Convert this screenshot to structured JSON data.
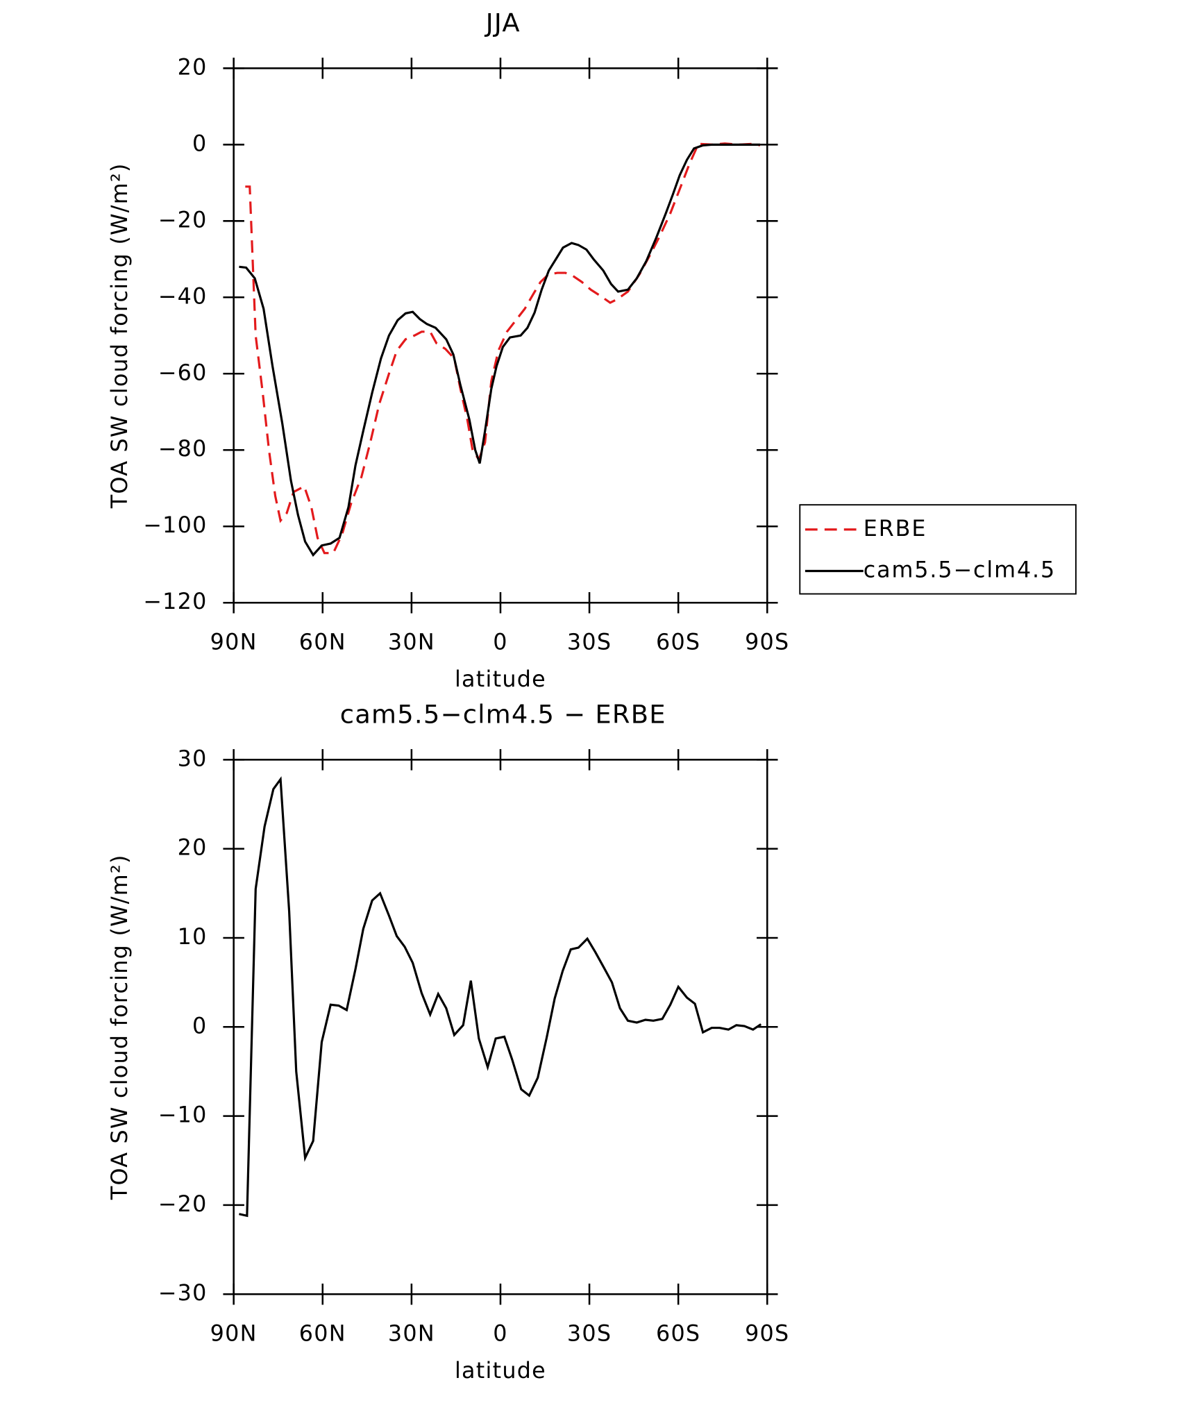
{
  "chart_data": [
    {
      "type": "line",
      "title": "JJA",
      "xlabel": "latitude",
      "ylabel": "TOA SW cloud forcing (W/m²)",
      "xlim": [
        90,
        -90
      ],
      "xticks": [
        {
          "value": 90,
          "label": "90N"
        },
        {
          "value": 60,
          "label": "60N"
        },
        {
          "value": 30,
          "label": "30N"
        },
        0,
        {
          "value": -30,
          "label": "30S"
        },
        {
          "value": -60,
          "label": "60S"
        },
        {
          "value": -90,
          "label": "90S"
        }
      ],
      "ylim": [
        -120,
        20
      ],
      "yticks": [
        {
          "value": -120,
          "label": "−120"
        },
        {
          "value": -100,
          "label": "−100"
        },
        {
          "value": -80,
          "label": "−80"
        },
        {
          "value": -60,
          "label": "−60"
        },
        {
          "value": -40,
          "label": "−40"
        },
        {
          "value": -20,
          "label": "−20"
        },
        0,
        20
      ],
      "legend": "right",
      "series": [
        {
          "name": "ERBE",
          "color": "#e31a1c",
          "dash": true,
          "x": [
            86.1,
            84.6,
            82.6,
            80.2,
            78.1,
            76.0,
            74.2,
            72.1,
            69.8,
            66.2,
            63.8,
            61.7,
            59.4,
            56.4,
            53.4,
            50.4,
            46.9,
            43.9,
            40.9,
            37.6,
            35.0,
            32.0,
            29.0,
            26.6,
            23.7,
            21.6,
            18.6,
            15.6,
            13.5,
            11.2,
            9.4,
            7.3,
            5.2,
            3.1,
            0.7,
            -2.2,
            -5.2,
            -8.2,
            -11.2,
            -13.5,
            -16.2,
            -19.2,
            -21.9,
            -24.5,
            -27.5,
            -30.5,
            -33.5,
            -37.0,
            -39.4,
            -43.0,
            -46.9,
            -50.4,
            -53.7,
            -57.3,
            -60.8,
            -63.8,
            -66.8,
            -71.6,
            -75.7,
            -80.5,
            -85.5,
            -87.6
          ],
          "values": [
            -11,
            -11,
            -50,
            -65,
            -80,
            -92,
            -98.5,
            -96.5,
            -91,
            -89.5,
            -95,
            -103,
            -107,
            -107,
            -102,
            -94,
            -87,
            -78,
            -68,
            -60,
            -54,
            -51,
            -50,
            -49,
            -49,
            -52,
            -53.5,
            -56,
            -64,
            -72,
            -80,
            -82.5,
            -78,
            -62,
            -54,
            -49,
            -46,
            -43,
            -39,
            -36,
            -34,
            -33.6,
            -33.6,
            -34.4,
            -36,
            -38,
            -39.5,
            -41.4,
            -40.5,
            -38.5,
            -34,
            -29,
            -24,
            -18,
            -11,
            -5,
            0.2,
            0,
            0.3,
            0,
            0.2,
            -0.2
          ]
        },
        {
          "name": "cam5.5−clm4.5",
          "color": "#000000",
          "dash": false,
          "x": [
            88.2,
            85.8,
            82.9,
            79.9,
            76.9,
            73.6,
            70.7,
            68.3,
            65.9,
            63.2,
            60.3,
            57.3,
            54.3,
            51.3,
            48.9,
            46.3,
            43.3,
            40.3,
            37.6,
            34.7,
            32.0,
            29.6,
            27.2,
            24.8,
            21.9,
            18.3,
            15.9,
            13.5,
            10.5,
            8.5,
            7.0,
            5.2,
            3.1,
            1.3,
            -0.8,
            -3.2,
            -6.8,
            -9.1,
            -11.5,
            -13.9,
            -16.3,
            -18.7,
            -21.1,
            -24.0,
            -26.3,
            -29.0,
            -31.4,
            -34.7,
            -37.3,
            -39.7,
            -43.0,
            -46.0,
            -49.2,
            -52.5,
            -55.8,
            -58.2,
            -60.5,
            -62.9,
            -65.3,
            -68.3,
            -71.6,
            -74.5,
            -78.1,
            -82.6,
            -85.8,
            -87.6
          ],
          "values": [
            -32,
            -32.2,
            -35,
            -43,
            -58,
            -73,
            -88,
            -97,
            -104,
            -107.5,
            -105,
            -104.5,
            -103,
            -95,
            -84,
            -75,
            -65,
            -56,
            -50,
            -46,
            -44.2,
            -43.8,
            -45.7,
            -47,
            -48,
            -51,
            -55,
            -63,
            -72,
            -80,
            -83.5,
            -75,
            -64,
            -58,
            -53,
            -50.5,
            -50,
            -48,
            -44,
            -38,
            -33,
            -30,
            -27,
            -25.8,
            -26.3,
            -27.5,
            -30,
            -33,
            -36.5,
            -38.5,
            -38,
            -35,
            -30.5,
            -24.5,
            -18,
            -13,
            -8,
            -4,
            -1,
            -0.2,
            0,
            0,
            0,
            0,
            0,
            0
          ]
        }
      ]
    },
    {
      "type": "line",
      "title": "cam5.5−clm4.5 − ERBE",
      "xlabel": "latitude",
      "ylabel": "TOA SW cloud forcing (W/m²)",
      "xlim": [
        90,
        -90
      ],
      "xticks": [
        {
          "value": 90,
          "label": "90N"
        },
        {
          "value": 60,
          "label": "60N"
        },
        {
          "value": 30,
          "label": "30N"
        },
        0,
        {
          "value": -30,
          "label": "30S"
        },
        {
          "value": -60,
          "label": "60S"
        },
        {
          "value": -90,
          "label": "90S"
        }
      ],
      "ylim": [
        -30,
        30
      ],
      "yticks": [
        {
          "value": -30,
          "label": "−30"
        },
        {
          "value": -20,
          "label": "−20"
        },
        {
          "value": -10,
          "label": "−10"
        },
        0,
        10,
        20,
        30
      ],
      "series": [
        {
          "color": "#000000",
          "dash": false,
          "x": [
            88.2,
            85.5,
            82.6,
            79.6,
            76.6,
            74.2,
            71.3,
            68.9,
            65.9,
            63.2,
            60.3,
            57.3,
            54.6,
            51.9,
            48.9,
            46.3,
            43.3,
            40.6,
            37.6,
            35.0,
            32.3,
            29.6,
            26.6,
            23.7,
            21.0,
            18.3,
            15.6,
            12.6,
            10.0,
            7.3,
            4.3,
            1.6,
            -1.3,
            -4.0,
            -7.0,
            -9.7,
            -12.6,
            -15.6,
            -18.3,
            -21.0,
            -23.7,
            -26.3,
            -29.3,
            -32.0,
            -35.0,
            -37.6,
            -40.3,
            -43.0,
            -46.0,
            -48.9,
            -51.6,
            -54.6,
            -57.3,
            -60.0,
            -62.9,
            -65.6,
            -68.3,
            -71.3,
            -73.9,
            -76.9,
            -79.6,
            -82.3,
            -85.2,
            -87.9
          ],
          "values": [
            -21,
            -21.2,
            15.5,
            22.5,
            26.7,
            27.8,
            13,
            -5,
            -14.7,
            -12.8,
            -1.7,
            2.5,
            2.4,
            1.9,
            6.5,
            11,
            14.2,
            15,
            12.5,
            10.2,
            9,
            7.2,
            3.8,
            1.4,
            3.7,
            2.1,
            -0.9,
            0.2,
            5.2,
            -1.3,
            -4.5,
            -1.3,
            -1.1,
            -3.7,
            -7,
            -7.7,
            -5.7,
            -1.2,
            3.2,
            6.3,
            8.7,
            8.9,
            9.9,
            8.4,
            6.6,
            5,
            2.1,
            0.7,
            0.5,
            0.8,
            0.7,
            0.9,
            2.5,
            4.5,
            3.3,
            2.6,
            -0.6,
            -0.1,
            -0.1,
            -0.3,
            0.2,
            0.1,
            -0.3,
            0.3
          ]
        }
      ]
    }
  ]
}
